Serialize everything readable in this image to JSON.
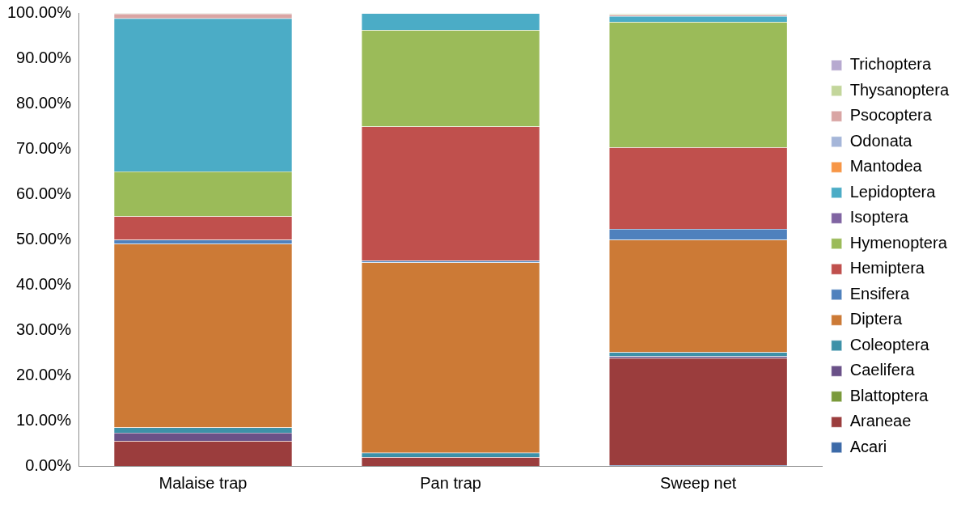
{
  "chart_data": {
    "type": "bar",
    "stacked": true,
    "categories": [
      "Malaise trap",
      "Pan trap",
      "Sweep net"
    ],
    "ylim": [
      0,
      100
    ],
    "yticks": [
      {
        "value": 0,
        "label": "0.00%"
      },
      {
        "value": 10,
        "label": "10.00%"
      },
      {
        "value": 20,
        "label": "20.00%"
      },
      {
        "value": 30,
        "label": "30.00%"
      },
      {
        "value": 40,
        "label": "40.00%"
      },
      {
        "value": 50,
        "label": "50.00%"
      },
      {
        "value": 60,
        "label": "60.00%"
      },
      {
        "value": 70,
        "label": "70.00%"
      },
      {
        "value": 80,
        "label": "80.00%"
      },
      {
        "value": 90,
        "label": "90.00%"
      },
      {
        "value": 100,
        "label": "100.00%"
      }
    ],
    "grid": false,
    "legend": "right",
    "series": [
      {
        "name": "Acari",
        "color": "#3c6aa8",
        "values": [
          0,
          0,
          0.2
        ]
      },
      {
        "name": "Araneae",
        "color": "#9b3d3d",
        "values": [
          5.5,
          1.9,
          23.6
        ]
      },
      {
        "name": "Blattoptera",
        "color": "#7a9a3a",
        "values": [
          0,
          0,
          null
        ]
      },
      {
        "name": "Caelifera",
        "color": "#6a5188",
        "values": [
          1.8,
          0,
          0.4
        ]
      },
      {
        "name": "Coleoptera",
        "color": "#3d91a8",
        "values": [
          1.2,
          1.0,
          0.9
        ]
      },
      {
        "name": "Diptera",
        "color": "#cc7a36",
        "values": [
          40.5,
          42.0,
          24.8
        ]
      },
      {
        "name": "Ensifera",
        "color": "#4f81bd",
        "values": [
          0.9,
          0.4,
          2.4
        ]
      },
      {
        "name": "Hemiptera",
        "color": "#c0504d",
        "values": [
          5.2,
          29.6,
          18.0
        ]
      },
      {
        "name": "Hymenoptera",
        "color": "#9bbb59",
        "values": [
          9.9,
          21.3,
          27.7
        ]
      },
      {
        "name": "Isoptera",
        "color": "#8064a2",
        "values": [
          0,
          0,
          0
        ]
      },
      {
        "name": "Lepidoptera",
        "color": "#4bacc6",
        "values": [
          33.8,
          3.7,
          1.3
        ]
      },
      {
        "name": "Mantodea",
        "color": "#f79646",
        "values": [
          0,
          0,
          0
        ]
      },
      {
        "name": "Odonata",
        "color": "#a5b6d9",
        "values": [
          0,
          0,
          0
        ]
      },
      {
        "name": "Psocoptera",
        "color": "#d9a5a4",
        "values": [
          1.0,
          0,
          0.3
        ]
      },
      {
        "name": "Thysanoptera",
        "color": "#c3d69b",
        "values": [
          0.1,
          0,
          0.2
        ]
      },
      {
        "name": "Trichoptera",
        "color": "#b7a9d0",
        "values": [
          0.1,
          null,
          null
        ]
      }
    ]
  }
}
